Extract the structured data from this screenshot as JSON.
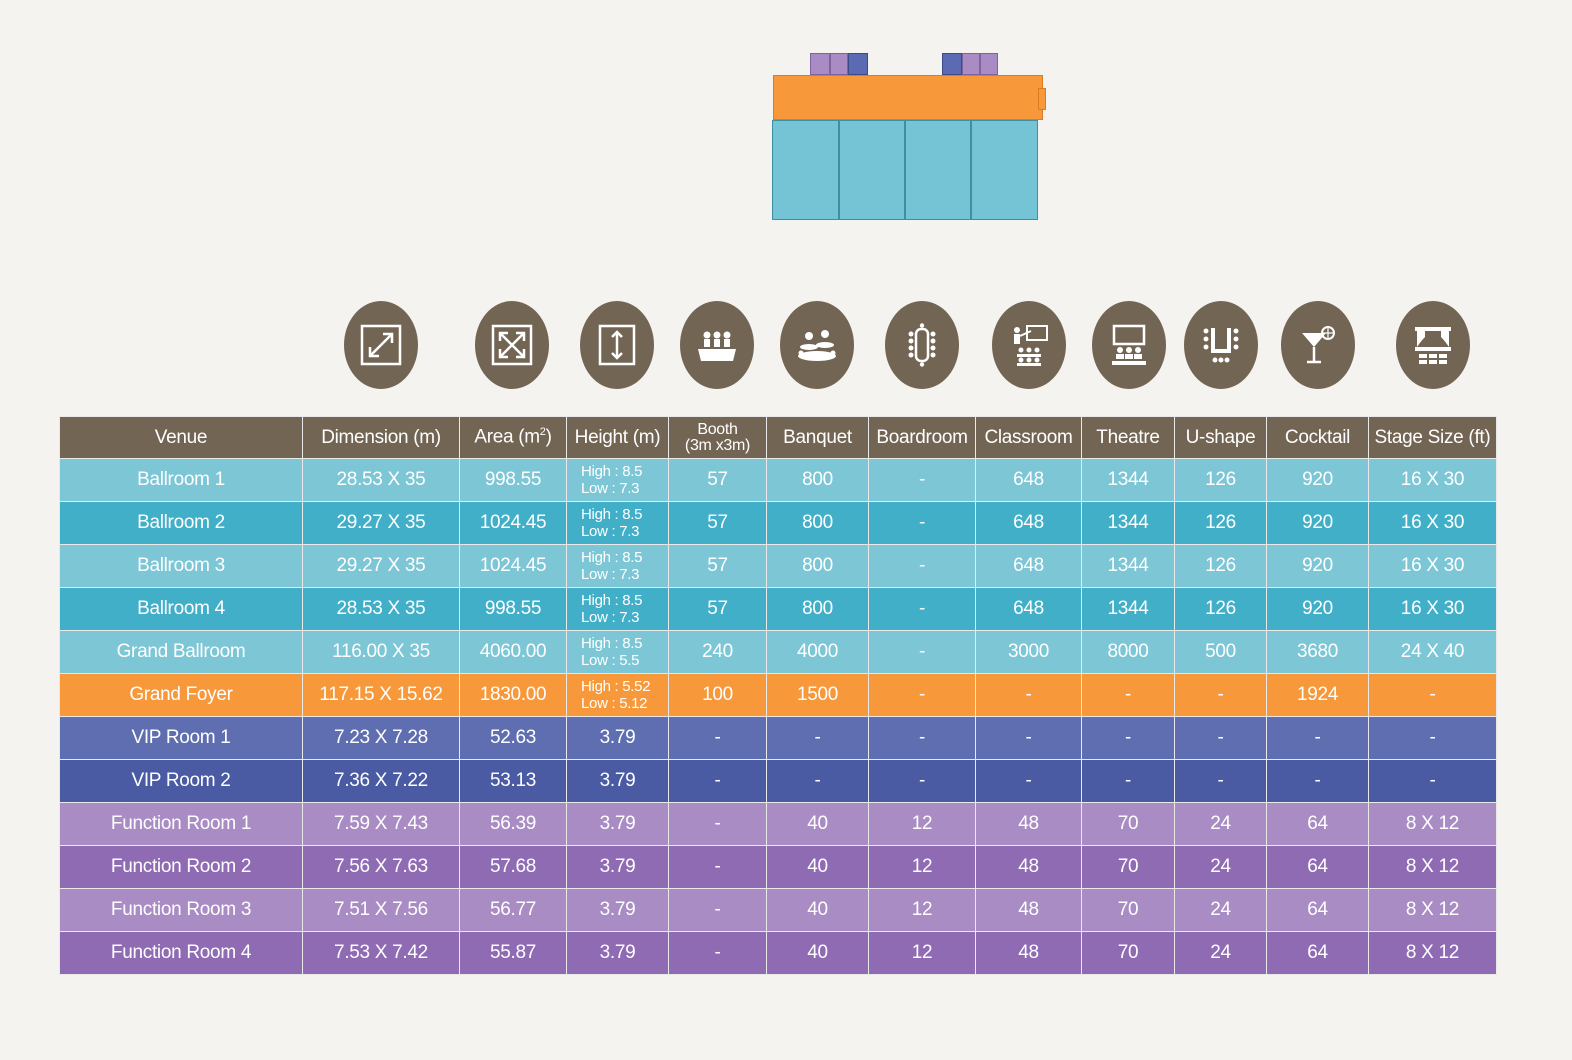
{
  "palette": {
    "header": "#736554",
    "ballroom_light": "#7cc6d6",
    "ballroom_dark": "#42afc9",
    "foyer": "#f7993b",
    "vip_light": "#5f6eb0",
    "vip_dark": "#4a5aa3",
    "func_light": "#a98cc4",
    "func_dark": "#8f6bb4",
    "background": "#f4f3ef"
  },
  "icons": [
    {
      "name": "dimension-icon"
    },
    {
      "name": "area-icon"
    },
    {
      "name": "height-icon"
    },
    {
      "name": "booth-icon"
    },
    {
      "name": "banquet-icon"
    },
    {
      "name": "boardroom-icon"
    },
    {
      "name": "classroom-icon"
    },
    {
      "name": "theatre-icon"
    },
    {
      "name": "u-shape-icon"
    },
    {
      "name": "cocktail-icon"
    },
    {
      "name": "stage-icon"
    }
  ],
  "table": {
    "headers": {
      "venue": "Venue",
      "dimension": "Dimension (m)",
      "area": "Area (m",
      "area_sup": "2",
      "area_close": ")",
      "height": "Height (m)",
      "booth_line1": "Booth",
      "booth_line2": "(3m x3m)",
      "banquet": "Banquet",
      "boardroom": "Boardroom",
      "classroom": "Classroom",
      "theatre": "Theatre",
      "ushape": "U-shape",
      "cocktail": "Cocktail",
      "stage": "Stage Size (ft)"
    },
    "rows": [
      {
        "venue": "Ballroom 1",
        "dimension": "28.53 X 35",
        "area": "998.55",
        "height_high": "High : 8.5",
        "height_low": "Low : 7.3",
        "booth": "57",
        "banquet": "800",
        "boardroom": "-",
        "classroom": "648",
        "theatre": "1344",
        "ushape": "126",
        "cocktail": "920",
        "stage": "16 X 30"
      },
      {
        "venue": "Ballroom 2",
        "dimension": "29.27 X 35",
        "area": "1024.45",
        "height_high": "High : 8.5",
        "height_low": "Low : 7.3",
        "booth": "57",
        "banquet": "800",
        "boardroom": "-",
        "classroom": "648",
        "theatre": "1344",
        "ushape": "126",
        "cocktail": "920",
        "stage": "16 X 30"
      },
      {
        "venue": "Ballroom 3",
        "dimension": "29.27 X 35",
        "area": "1024.45",
        "height_high": "High : 8.5",
        "height_low": "Low : 7.3",
        "booth": "57",
        "banquet": "800",
        "boardroom": "-",
        "classroom": "648",
        "theatre": "1344",
        "ushape": "126",
        "cocktail": "920",
        "stage": "16 X 30"
      },
      {
        "venue": "Ballroom 4",
        "dimension": "28.53 X 35",
        "area": "998.55",
        "height_high": "High : 8.5",
        "height_low": "Low : 7.3",
        "booth": "57",
        "banquet": "800",
        "boardroom": "-",
        "classroom": "648",
        "theatre": "1344",
        "ushape": "126",
        "cocktail": "920",
        "stage": "16 X 30"
      },
      {
        "venue": "Grand Ballroom",
        "dimension": "116.00 X 35",
        "area": "4060.00",
        "height_high": "High : 8.5",
        "height_low": "Low : 5.5",
        "booth": "240",
        "banquet": "4000",
        "boardroom": "-",
        "classroom": "3000",
        "theatre": "8000",
        "ushape": "500",
        "cocktail": "3680",
        "stage": "24 X 40"
      },
      {
        "venue": "Grand Foyer",
        "dimension": "117.15 X 15.62",
        "area": "1830.00",
        "height_high": "High : 5.52",
        "height_low": "Low : 5.12",
        "booth": "100",
        "banquet": "1500",
        "boardroom": "-",
        "classroom": "-",
        "theatre": "-",
        "ushape": "-",
        "cocktail": "1924",
        "stage": "-"
      },
      {
        "venue": "VIP Room 1",
        "dimension": "7.23 X 7.28",
        "area": "52.63",
        "height": "3.79",
        "booth": "-",
        "banquet": "-",
        "boardroom": "-",
        "classroom": "-",
        "theatre": "-",
        "ushape": "-",
        "cocktail": "-",
        "stage": "-"
      },
      {
        "venue": "VIP Room 2",
        "dimension": "7.36 X 7.22",
        "area": "53.13",
        "height": "3.79",
        "booth": "-",
        "banquet": "-",
        "boardroom": "-",
        "classroom": "-",
        "theatre": "-",
        "ushape": "-",
        "cocktail": "-",
        "stage": "-"
      },
      {
        "venue": "Function Room 1",
        "dimension": "7.59 X 7.43",
        "area": "56.39",
        "height": "3.79",
        "booth": "-",
        "banquet": "40",
        "boardroom": "12",
        "classroom": "48",
        "theatre": "70",
        "ushape": "24",
        "cocktail": "64",
        "stage": "8 X 12"
      },
      {
        "venue": "Function Room 2",
        "dimension": "7.56 X 7.63",
        "area": "57.68",
        "height": "3.79",
        "booth": "-",
        "banquet": "40",
        "boardroom": "12",
        "classroom": "48",
        "theatre": "70",
        "ushape": "24",
        "cocktail": "64",
        "stage": "8 X 12"
      },
      {
        "venue": "Function Room 3",
        "dimension": "7.51 X 7.56",
        "area": "56.77",
        "height": "3.79",
        "booth": "-",
        "banquet": "40",
        "boardroom": "12",
        "classroom": "48",
        "theatre": "70",
        "ushape": "24",
        "cocktail": "64",
        "stage": "8 X 12"
      },
      {
        "venue": "Function Room 4",
        "dimension": "7.53 X 7.42",
        "area": "55.87",
        "height": "3.79",
        "booth": "-",
        "banquet": "40",
        "boardroom": "12",
        "classroom": "48",
        "theatre": "70",
        "ushape": "24",
        "cocktail": "64",
        "stage": "8 X 12"
      }
    ]
  }
}
